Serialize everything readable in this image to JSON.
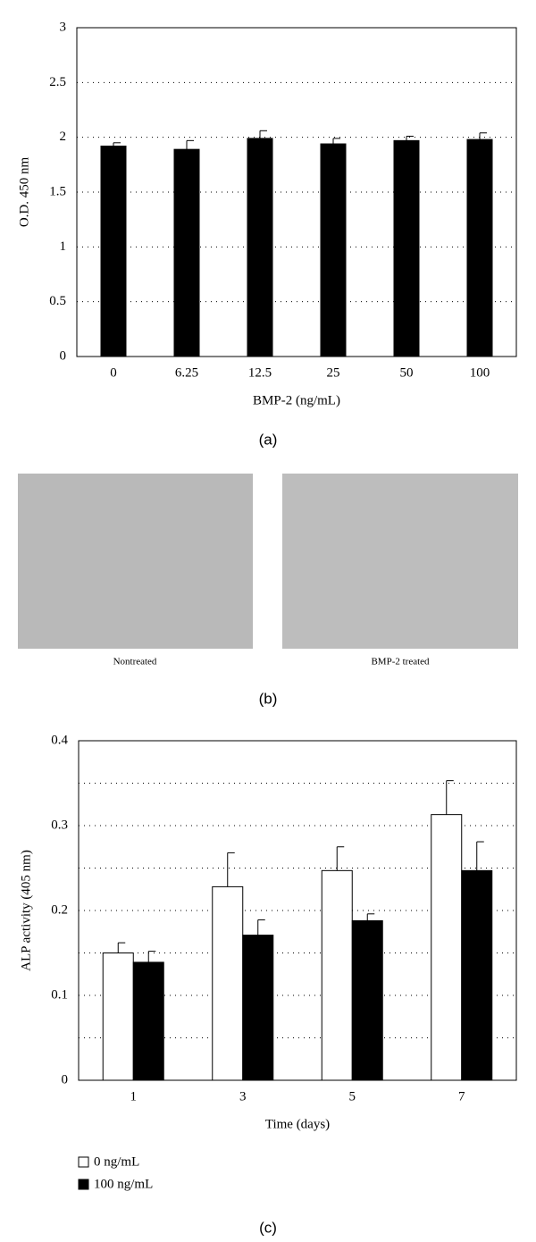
{
  "chart_data": [
    {
      "type": "bar",
      "ylabel": "O.D. 450 nm",
      "xlabel": "BMP-2 (ng/mL)",
      "categories": [
        "0",
        "6.25",
        "12.5",
        "25",
        "50",
        "100"
      ],
      "series": [
        {
          "color": "#000000",
          "values": [
            1.92,
            1.89,
            1.99,
            1.94,
            1.97,
            1.98
          ],
          "errors": [
            0.03,
            0.08,
            0.07,
            0.05,
            0.04,
            0.06
          ]
        }
      ],
      "ylim": [
        0,
        3
      ],
      "yticks": [
        0,
        0.5,
        1,
        1.5,
        2,
        2.5,
        3
      ],
      "grid": true
    },
    {
      "type": "bar",
      "ylabel": "ALP activity (405 nm)",
      "xlabel": "Time (days)",
      "categories": [
        "1",
        "3",
        "5",
        "7"
      ],
      "series": [
        {
          "name": "0 ng/mL",
          "color": "#ffffff",
          "values": [
            0.15,
            0.228,
            0.247,
            0.313
          ],
          "errors": [
            0.012,
            0.04,
            0.028,
            0.04
          ]
        },
        {
          "name": "100 ng/mL",
          "color": "#000000",
          "values": [
            0.139,
            0.171,
            0.188,
            0.247
          ],
          "errors": [
            0.013,
            0.018,
            0.008,
            0.034
          ]
        }
      ],
      "ylim": [
        0,
        0.4
      ],
      "yticks": [
        0,
        0.1,
        0.2,
        0.3,
        0.4
      ],
      "minor_yticks": [
        0.05,
        0.15,
        0.25,
        0.35
      ],
      "grid": true,
      "legend": "below-left"
    }
  ],
  "panel_labels": [
    "(a)",
    "(b)",
    "(c)"
  ],
  "images": [
    {
      "caption": "Nontreated"
    },
    {
      "caption": "BMP-2 treated"
    }
  ]
}
